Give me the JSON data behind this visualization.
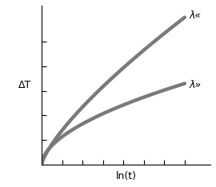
{
  "title": "",
  "xlabel": "ln(t)",
  "ylabel": "ΔT",
  "label_upper": "λ«",
  "label_lower": "λ»",
  "line_color": "#7a7a7a",
  "line_width": 3.2,
  "background_color": "#ffffff",
  "upper_a": 1.0,
  "upper_b": 0.75,
  "lower_a": 0.55,
  "lower_b": 0.55,
  "x_min": 0.0,
  "x_max": 1.0,
  "y_min": 0.0,
  "y_max": 1.0,
  "num_xticks": 7,
  "num_yticks": 6,
  "figsize": [
    2.7,
    2.34
  ],
  "dpi": 100
}
